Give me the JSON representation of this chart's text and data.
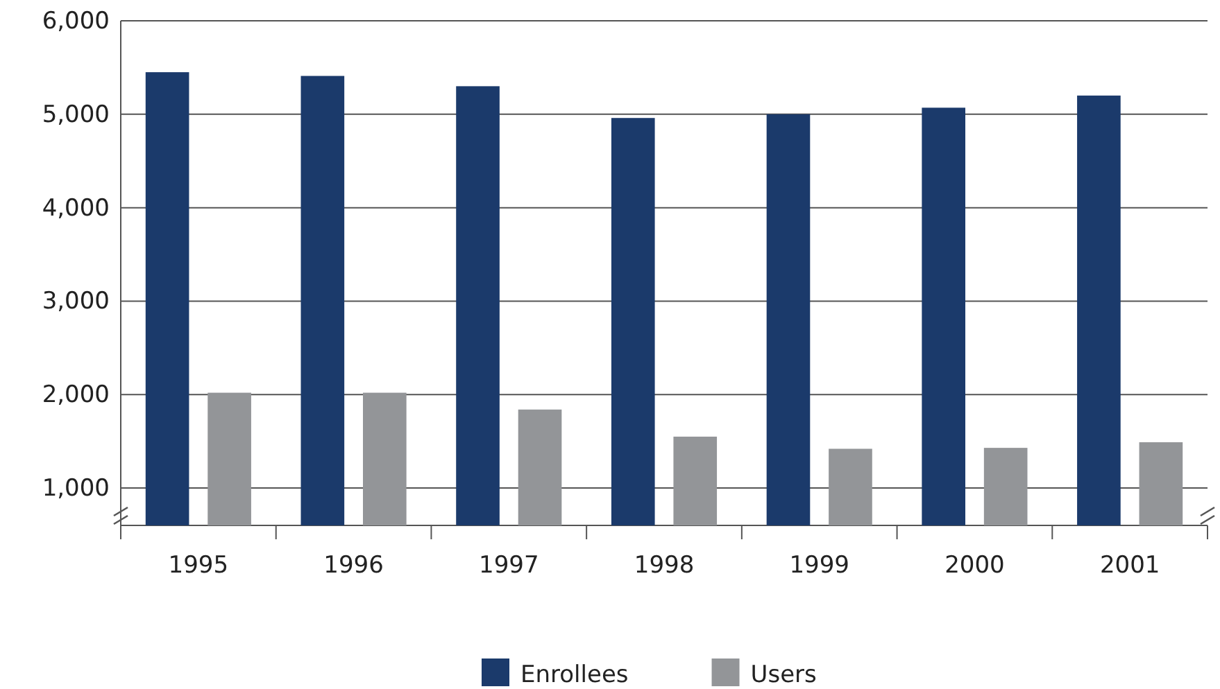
{
  "chart_data": {
    "type": "bar",
    "categories": [
      "1995",
      "1996",
      "1997",
      "1998",
      "1999",
      "2000",
      "2001"
    ],
    "series": [
      {
        "name": "Enrollees",
        "color": "#1b3a6b",
        "values": [
          5450,
          5410,
          5300,
          4960,
          5000,
          5070,
          5200
        ]
      },
      {
        "name": "Users",
        "color": "#939598",
        "values": [
          2020,
          2020,
          1840,
          1550,
          1420,
          1430,
          1490
        ]
      }
    ],
    "ylim": [
      600,
      6000
    ],
    "yticks": [
      {
        "value": 1000,
        "label": "1,000"
      },
      {
        "value": 2000,
        "label": "2,000"
      },
      {
        "value": 3000,
        "label": "3,000"
      },
      {
        "value": 4000,
        "label": "4,000"
      },
      {
        "value": 5000,
        "label": "5,000"
      },
      {
        "value": 6000,
        "label": "6,000"
      }
    ],
    "grid": "y",
    "legend": "bottom"
  }
}
